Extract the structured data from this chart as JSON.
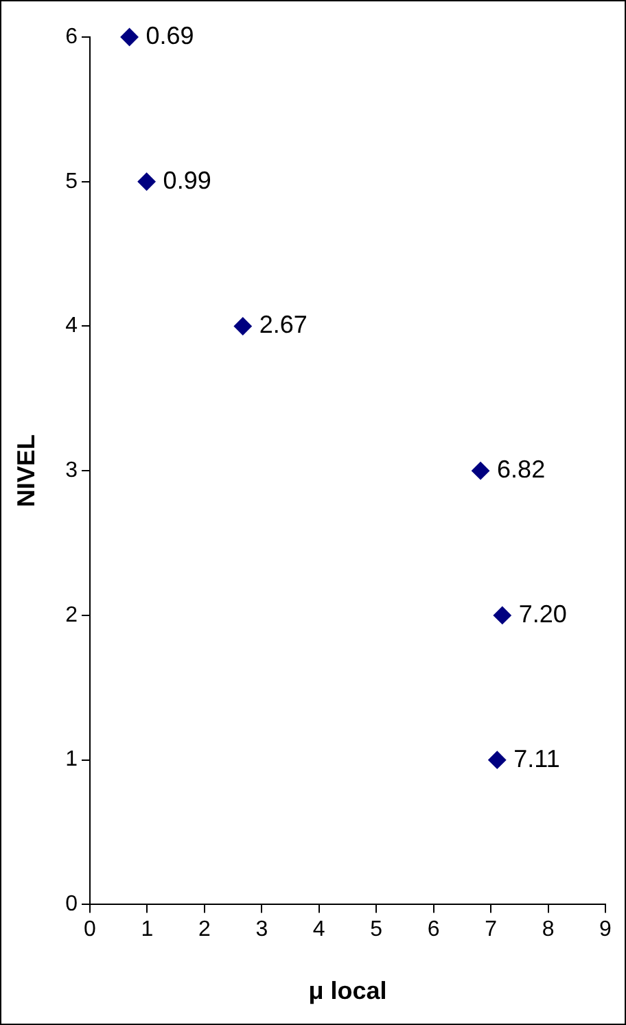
{
  "chart_data": {
    "type": "scatter",
    "xlabel": "μ local",
    "ylabel": "NIVEL",
    "xlim": [
      0,
      9
    ],
    "xticks": [
      0,
      1,
      2,
      3,
      4,
      5,
      6,
      7,
      8,
      9
    ],
    "ylim": [
      0,
      6
    ],
    "yticks": [
      0,
      1,
      2,
      3,
      4,
      5,
      6
    ],
    "grid": false,
    "legend": false,
    "marker": "diamond",
    "series": [
      {
        "color": "#000080",
        "x": [
          0.69,
          0.99,
          2.67,
          6.82,
          7.2,
          7.11
        ],
        "values": [
          6,
          5,
          4,
          3,
          2,
          1
        ]
      }
    ],
    "annotations": [
      {
        "text": "0.69",
        "x": 0.69,
        "y": 6
      },
      {
        "text": "0.99",
        "x": 0.99,
        "y": 5
      },
      {
        "text": "2.67",
        "x": 2.67,
        "y": 4
      },
      {
        "text": "6.82",
        "x": 6.82,
        "y": 3
      },
      {
        "text": "7.20",
        "x": 7.2,
        "y": 2
      },
      {
        "text": "7.11",
        "x": 7.11,
        "y": 1
      }
    ]
  }
}
